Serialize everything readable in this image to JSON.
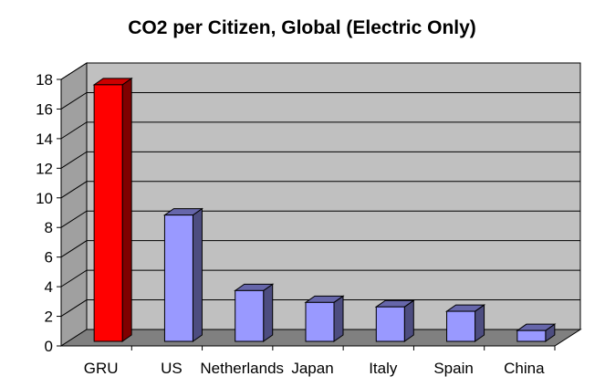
{
  "chart_data": {
    "type": "bar",
    "title": "CO2 per Citizen, Global (Electric Only)",
    "xlabel": "",
    "ylabel": "",
    "categories": [
      "GRU",
      "US",
      "Netherlands",
      "Japan",
      "Italy",
      "Spain",
      "China"
    ],
    "values": [
      17.7,
      8.9,
      3.8,
      3.0,
      2.7,
      2.4,
      1.1
    ],
    "ylim": [
      0,
      18
    ],
    "yticks": [
      "0",
      "2",
      "4",
      "6",
      "8",
      "10",
      "12",
      "14",
      "16",
      "18"
    ],
    "grid": true,
    "legend": "none",
    "style": "3d-column"
  },
  "colors": {
    "plot_back": "#c0c0c0",
    "plot_floor": "#808080",
    "plot_side": "#a0a0a0",
    "highlight_front": "#ff0000",
    "highlight_top": "#cc0000",
    "highlight_side": "#800000",
    "bar_front": "#9999ff",
    "bar_top": "#6666aa",
    "bar_side": "#4d4d80"
  }
}
